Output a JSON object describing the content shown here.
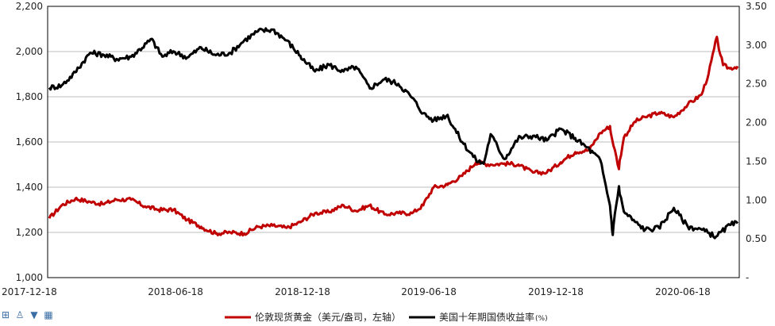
{
  "chart_data": {
    "type": "line",
    "left_axis": {
      "ylim": [
        1000,
        2200
      ],
      "ticks": [
        "1,000",
        "1,200",
        "1,400",
        "1,600",
        "1,800",
        "2,000",
        "2,200"
      ]
    },
    "right_axis": {
      "ylim": [
        0,
        3.5
      ],
      "ticks": [
        "-",
        "0.50",
        "1.00",
        "1.50",
        "2.00",
        "2.50",
        "3.00",
        "3.50"
      ]
    },
    "x_ticks": [
      "2017-12-18",
      "2018-06-18",
      "2018-12-18",
      "2019-06-18",
      "2019-12-18",
      "2020-06-18"
    ],
    "grid": "horizontal",
    "legend_position": "bottom",
    "series": [
      {
        "name": "伦敦现货黄金（美元/盎司，左轴）",
        "axis": "left",
        "color": "#c00000",
        "points": [
          [
            "2017-12-18",
            1262
          ],
          [
            "2018-01-05",
            1320
          ],
          [
            "2018-01-25",
            1350
          ],
          [
            "2018-02-15",
            1335
          ],
          [
            "2018-03-05",
            1325
          ],
          [
            "2018-03-25",
            1345
          ],
          [
            "2018-04-15",
            1345
          ],
          [
            "2018-05-05",
            1315
          ],
          [
            "2018-05-25",
            1300
          ],
          [
            "2018-06-15",
            1300
          ],
          [
            "2018-07-05",
            1255
          ],
          [
            "2018-07-25",
            1225
          ],
          [
            "2018-08-15",
            1195
          ],
          [
            "2018-09-05",
            1200
          ],
          [
            "2018-09-25",
            1195
          ],
          [
            "2018-10-15",
            1225
          ],
          [
            "2018-11-05",
            1230
          ],
          [
            "2018-11-25",
            1220
          ],
          [
            "2018-12-15",
            1245
          ],
          [
            "2019-01-05",
            1285
          ],
          [
            "2019-01-25",
            1290
          ],
          [
            "2019-02-15",
            1320
          ],
          [
            "2019-03-05",
            1295
          ],
          [
            "2019-03-25",
            1320
          ],
          [
            "2019-04-15",
            1280
          ],
          [
            "2019-05-05",
            1285
          ],
          [
            "2019-05-25",
            1285
          ],
          [
            "2019-06-10",
            1320
          ],
          [
            "2019-06-25",
            1400
          ],
          [
            "2019-07-15",
            1410
          ],
          [
            "2019-08-05",
            1450
          ],
          [
            "2019-08-25",
            1510
          ],
          [
            "2019-09-15",
            1500
          ],
          [
            "2019-10-05",
            1505
          ],
          [
            "2019-10-25",
            1500
          ],
          [
            "2019-11-15",
            1465
          ],
          [
            "2019-12-05",
            1465
          ],
          [
            "2019-12-25",
            1510
          ],
          [
            "2020-01-15",
            1555
          ],
          [
            "2020-02-05",
            1565
          ],
          [
            "2020-02-20",
            1640
          ],
          [
            "2020-03-05",
            1670
          ],
          [
            "2020-03-18",
            1480
          ],
          [
            "2020-03-25",
            1620
          ],
          [
            "2020-04-10",
            1690
          ],
          [
            "2020-04-25",
            1710
          ],
          [
            "2020-05-15",
            1730
          ],
          [
            "2020-06-05",
            1710
          ],
          [
            "2020-06-25",
            1765
          ],
          [
            "2020-07-15",
            1810
          ],
          [
            "2020-07-25",
            1900
          ],
          [
            "2020-08-06",
            2065
          ],
          [
            "2020-08-15",
            1940
          ],
          [
            "2020-08-25",
            1925
          ],
          [
            "2020-09-05",
            1935
          ]
        ]
      },
      {
        "name": "美国十年期国债收益率",
        "unit": "(%)",
        "axis": "right",
        "color": "#000000",
        "points": [
          [
            "2017-12-18",
            2.45
          ],
          [
            "2018-01-05",
            2.48
          ],
          [
            "2018-01-25",
            2.65
          ],
          [
            "2018-02-15",
            2.9
          ],
          [
            "2018-03-05",
            2.88
          ],
          [
            "2018-03-25",
            2.82
          ],
          [
            "2018-04-15",
            2.85
          ],
          [
            "2018-05-15",
            3.08
          ],
          [
            "2018-05-30",
            2.85
          ],
          [
            "2018-06-15",
            2.92
          ],
          [
            "2018-07-05",
            2.84
          ],
          [
            "2018-07-25",
            2.97
          ],
          [
            "2018-08-15",
            2.87
          ],
          [
            "2018-09-05",
            2.9
          ],
          [
            "2018-09-25",
            3.06
          ],
          [
            "2018-10-15",
            3.18
          ],
          [
            "2018-11-05",
            3.2
          ],
          [
            "2018-11-25",
            3.06
          ],
          [
            "2018-12-15",
            2.86
          ],
          [
            "2019-01-05",
            2.66
          ],
          [
            "2019-01-25",
            2.75
          ],
          [
            "2019-02-15",
            2.66
          ],
          [
            "2019-03-05",
            2.72
          ],
          [
            "2019-03-25",
            2.44
          ],
          [
            "2019-04-15",
            2.56
          ],
          [
            "2019-05-05",
            2.5
          ],
          [
            "2019-05-25",
            2.32
          ],
          [
            "2019-06-10",
            2.12
          ],
          [
            "2019-06-25",
            2.03
          ],
          [
            "2019-07-15",
            2.1
          ],
          [
            "2019-08-05",
            1.75
          ],
          [
            "2019-08-25",
            1.52
          ],
          [
            "2019-09-05",
            1.47
          ],
          [
            "2019-09-15",
            1.85
          ],
          [
            "2019-10-05",
            1.53
          ],
          [
            "2019-10-25",
            1.8
          ],
          [
            "2019-11-15",
            1.83
          ],
          [
            "2019-12-05",
            1.77
          ],
          [
            "2019-12-25",
            1.92
          ],
          [
            "2020-01-15",
            1.8
          ],
          [
            "2020-02-05",
            1.65
          ],
          [
            "2020-02-20",
            1.52
          ],
          [
            "2020-03-05",
            0.93
          ],
          [
            "2020-03-09",
            0.55
          ],
          [
            "2020-03-18",
            1.18
          ],
          [
            "2020-03-25",
            0.85
          ],
          [
            "2020-04-10",
            0.72
          ],
          [
            "2020-04-25",
            0.62
          ],
          [
            "2020-05-15",
            0.64
          ],
          [
            "2020-06-05",
            0.9
          ],
          [
            "2020-06-25",
            0.66
          ],
          [
            "2020-07-15",
            0.62
          ],
          [
            "2020-08-05",
            0.53
          ],
          [
            "2020-08-25",
            0.68
          ],
          [
            "2020-09-05",
            0.7
          ]
        ]
      }
    ]
  },
  "toolbar": {
    "icons": [
      "table-icon",
      "user-icon",
      "shirt-icon",
      "grid-icon"
    ],
    "glyphs": [
      "⊞",
      "♙",
      "▼",
      "▦"
    ]
  }
}
